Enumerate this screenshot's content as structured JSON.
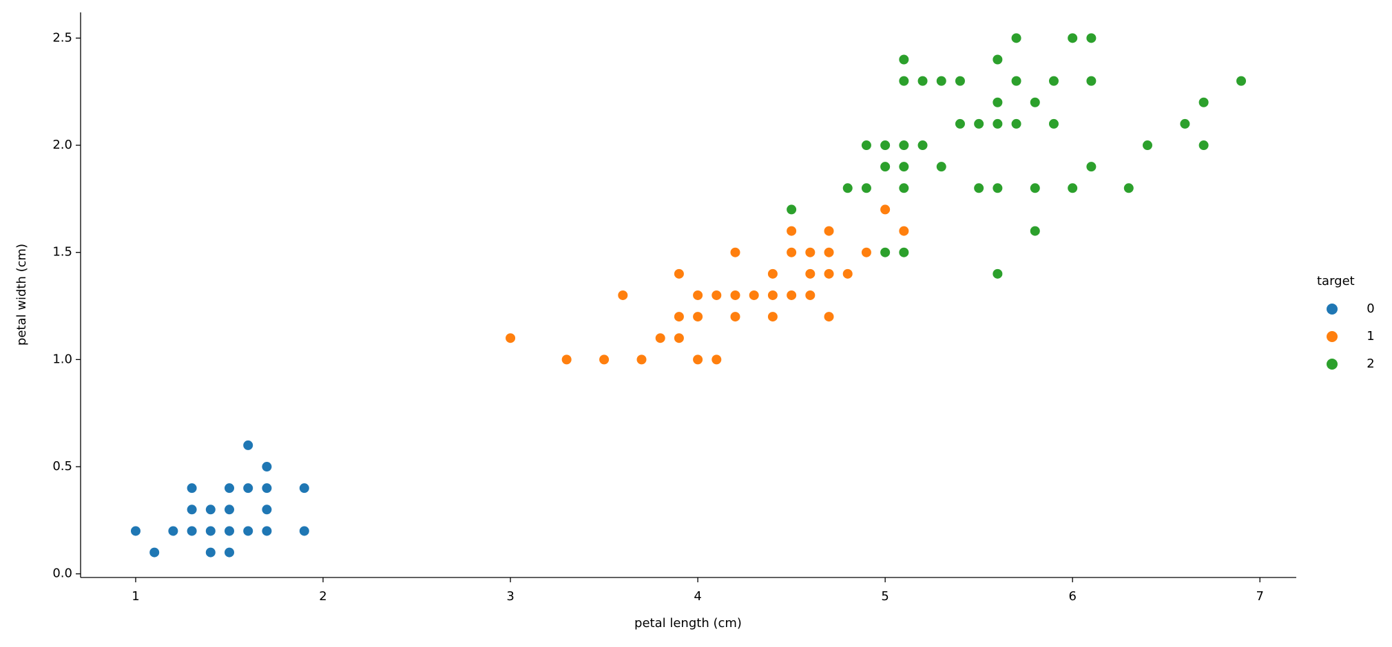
{
  "chart_data": {
    "type": "scatter",
    "xlabel": "petal length (cm)",
    "ylabel": "petal width (cm)",
    "legend_title": "target",
    "legend": "outside right",
    "xlim": [
      0.706,
      7.194
    ],
    "ylim": [
      -0.017,
      2.62
    ],
    "xticks": [
      1,
      2,
      3,
      4,
      5,
      6,
      7
    ],
    "yticks": [
      {
        "value": 0,
        "label": "0.0"
      },
      0.5,
      {
        "value": 1,
        "label": "1.0"
      },
      1.5,
      {
        "value": 2,
        "label": "2.0"
      },
      2.5
    ],
    "series": [
      {
        "name": "0",
        "color": "#1f77b4",
        "x": [
          1.0,
          1.1,
          1.2,
          1.3,
          1.3,
          1.3,
          1.4,
          1.4,
          1.4,
          1.5,
          1.5,
          1.5,
          1.5,
          1.6,
          1.6,
          1.6,
          1.7,
          1.7,
          1.7,
          1.7,
          1.9,
          1.9
        ],
        "values": [
          0.2,
          0.1,
          0.2,
          0.2,
          0.3,
          0.4,
          0.1,
          0.2,
          0.3,
          0.1,
          0.2,
          0.3,
          0.4,
          0.2,
          0.4,
          0.6,
          0.2,
          0.3,
          0.4,
          0.5,
          0.2,
          0.4
        ]
      },
      {
        "name": "1",
        "color": "#ff7f0e",
        "x": [
          3.0,
          3.3,
          3.5,
          3.6,
          3.7,
          3.8,
          3.9,
          3.9,
          3.9,
          4.0,
          4.0,
          4.0,
          4.1,
          4.1,
          4.2,
          4.2,
          4.2,
          4.3,
          4.4,
          4.4,
          4.4,
          4.5,
          4.5,
          4.5,
          4.6,
          4.6,
          4.6,
          4.7,
          4.7,
          4.7,
          4.7,
          4.8,
          4.9,
          5.0,
          5.1
        ],
        "values": [
          1.1,
          1.0,
          1.0,
          1.3,
          1.0,
          1.1,
          1.1,
          1.2,
          1.4,
          1.0,
          1.2,
          1.3,
          1.0,
          1.3,
          1.2,
          1.3,
          1.5,
          1.3,
          1.2,
          1.3,
          1.4,
          1.3,
          1.5,
          1.6,
          1.3,
          1.4,
          1.5,
          1.2,
          1.4,
          1.5,
          1.6,
          1.4,
          1.5,
          1.7,
          1.6
        ]
      },
      {
        "name": "2",
        "color": "#2ca02c",
        "x": [
          4.5,
          4.8,
          4.9,
          4.9,
          5.0,
          5.0,
          5.0,
          5.1,
          5.1,
          5.1,
          5.1,
          5.1,
          5.1,
          5.2,
          5.2,
          5.3,
          5.3,
          5.4,
          5.4,
          5.5,
          5.5,
          5.6,
          5.6,
          5.6,
          5.6,
          5.6,
          5.7,
          5.7,
          5.7,
          5.8,
          5.8,
          5.8,
          5.9,
          5.9,
          6.0,
          6.0,
          6.1,
          6.1,
          6.1,
          6.3,
          6.4,
          6.6,
          6.7,
          6.7,
          6.9
        ],
        "values": [
          1.7,
          1.8,
          1.8,
          2.0,
          1.5,
          1.9,
          2.0,
          1.5,
          1.8,
          1.9,
          2.0,
          2.3,
          2.4,
          2.0,
          2.3,
          1.9,
          2.3,
          2.1,
          2.3,
          1.8,
          2.1,
          1.4,
          1.8,
          2.1,
          2.2,
          2.4,
          2.1,
          2.3,
          2.5,
          1.6,
          1.8,
          2.2,
          2.1,
          2.3,
          1.8,
          2.5,
          1.9,
          2.3,
          2.5,
          1.8,
          2.0,
          2.1,
          2.0,
          2.2,
          2.3
        ]
      }
    ]
  }
}
